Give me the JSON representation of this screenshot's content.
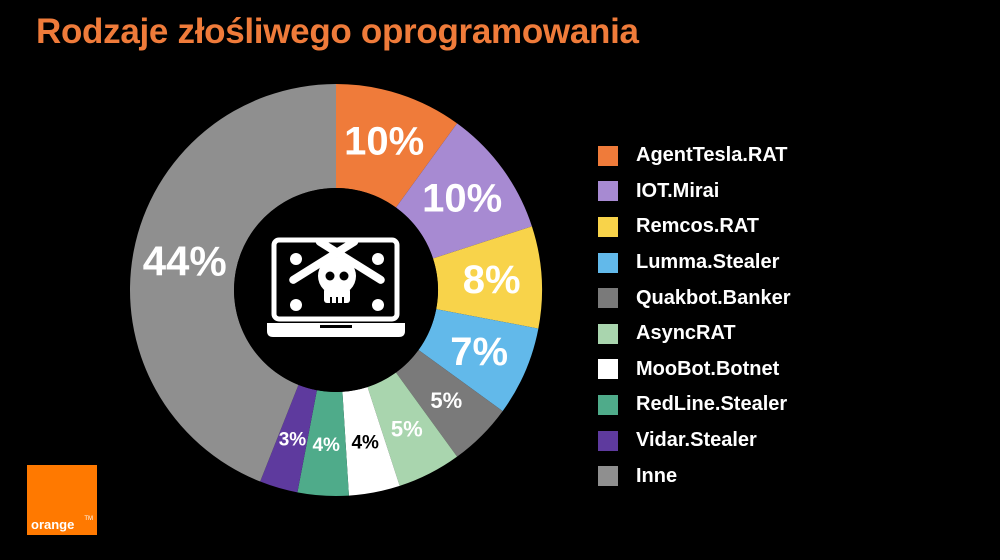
{
  "chart_data": {
    "type": "pie",
    "title": "Rodzaje złośliwego oprogramowania",
    "series": [
      {
        "name": "AgentTesla.RAT",
        "value": 10,
        "label": "10%",
        "color": "#ef7b3a"
      },
      {
        "name": "IOT.Mirai",
        "value": 10,
        "label": "10%",
        "color": "#a78ad2"
      },
      {
        "name": "Remcos.RAT",
        "value": 8,
        "label": "8%",
        "color": "#f8d34a"
      },
      {
        "name": "Lumma.Stealer",
        "value": 7,
        "label": "7%",
        "color": "#62b9ea"
      },
      {
        "name": "Quakbot.Banker",
        "value": 5,
        "label": "5%",
        "color": "#7a7a7a"
      },
      {
        "name": "AsyncRAT",
        "value": 5,
        "label": "5%",
        "color": "#a9d5ae"
      },
      {
        "name": "MooBot.Botnet",
        "value": 4,
        "label": "4%",
        "color": "#ffffff"
      },
      {
        "name": "RedLine.Stealer",
        "value": 4,
        "label": "4%",
        "color": "#4fab8a"
      },
      {
        "name": "Vidar.Stealer",
        "value": 3,
        "label": "3%",
        "color": "#5e3a9e"
      },
      {
        "name": "Inne",
        "value": 44,
        "label": "44%",
        "color": "#8f8f8f"
      }
    ],
    "legend_position": "right",
    "center_icon": "laptop-skull-icon"
  },
  "logo": {
    "text": "orange",
    "tm": "TM",
    "color": "#ff7900"
  }
}
